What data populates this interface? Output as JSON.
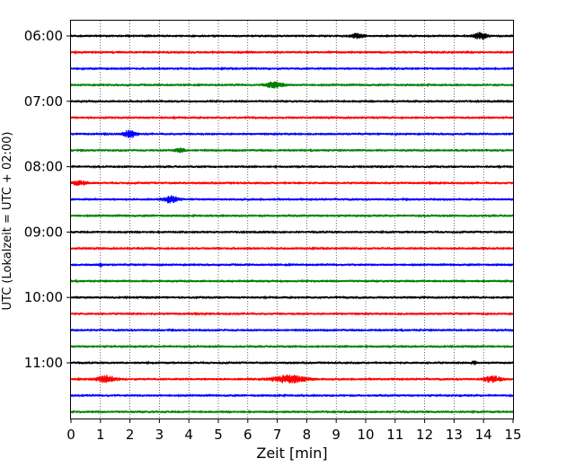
{
  "chart_data": {
    "type": "line",
    "title": "",
    "xlabel": "Zeit  [min]",
    "ylabel": "UTC (Lokalzeit = UTC + 02:00)",
    "xlim": [
      0,
      15
    ],
    "x_ticks": [
      "0",
      "1",
      "2",
      "3",
      "4",
      "5",
      "6",
      "7",
      "8",
      "9",
      "10",
      "11",
      "12",
      "13",
      "14",
      "15"
    ],
    "y_tick_labels": [
      "06:00",
      "07:00",
      "08:00",
      "09:00",
      "10:00",
      "11:00"
    ],
    "grid": "vertical dotted at each minute",
    "row_interval_minutes": 15,
    "row_colors": [
      "#000000",
      "#ff0000",
      "#0000ff",
      "#008000"
    ],
    "rows": [
      {
        "start": "06:00",
        "color": "#000000",
        "events": [
          {
            "x": 9.7,
            "amp": 2.2,
            "width": 0.7
          },
          {
            "x": 13.9,
            "amp": 3.2,
            "width": 0.7
          }
        ]
      },
      {
        "start": "06:15",
        "color": "#ff0000",
        "events": []
      },
      {
        "start": "06:30",
        "color": "#0000ff",
        "events": []
      },
      {
        "start": "06:45",
        "color": "#008000",
        "events": [
          {
            "x": 6.9,
            "amp": 3.0,
            "width": 0.9
          }
        ]
      },
      {
        "start": "07:00",
        "color": "#000000",
        "events": []
      },
      {
        "start": "07:15",
        "color": "#ff0000",
        "events": []
      },
      {
        "start": "07:30",
        "color": "#0000ff",
        "events": [
          {
            "x": 2.0,
            "amp": 3.6,
            "width": 0.7
          }
        ]
      },
      {
        "start": "07:45",
        "color": "#008000",
        "events": [
          {
            "x": 3.7,
            "amp": 2.0,
            "width": 0.5
          }
        ]
      },
      {
        "start": "08:00",
        "color": "#000000",
        "events": []
      },
      {
        "start": "08:15",
        "color": "#ff0000",
        "events": [
          {
            "x": 0.3,
            "amp": 2.0,
            "width": 0.8
          }
        ]
      },
      {
        "start": "08:30",
        "color": "#0000ff",
        "events": [
          {
            "x": 3.4,
            "amp": 3.6,
            "width": 0.7
          }
        ]
      },
      {
        "start": "08:45",
        "color": "#008000",
        "events": []
      },
      {
        "start": "09:00",
        "color": "#000000",
        "events": []
      },
      {
        "start": "09:15",
        "color": "#ff0000",
        "events": []
      },
      {
        "start": "09:30",
        "color": "#0000ff",
        "events": [
          {
            "x": 1.0,
            "amp": 2.0,
            "width": 0.15
          }
        ]
      },
      {
        "start": "09:45",
        "color": "#008000",
        "events": []
      },
      {
        "start": "10:00",
        "color": "#000000",
        "events": []
      },
      {
        "start": "10:15",
        "color": "#ff0000",
        "events": []
      },
      {
        "start": "10:30",
        "color": "#0000ff",
        "events": []
      },
      {
        "start": "10:45",
        "color": "#008000",
        "events": []
      },
      {
        "start": "11:00",
        "color": "#000000",
        "events": [
          {
            "x": 13.7,
            "amp": 1.8,
            "width": 0.3
          }
        ]
      },
      {
        "start": "11:15",
        "color": "#ff0000",
        "events": [
          {
            "x": 1.2,
            "amp": 3.4,
            "width": 1.0
          },
          {
            "x": 7.4,
            "amp": 4.0,
            "width": 1.6
          },
          {
            "x": 14.3,
            "amp": 3.4,
            "width": 0.8
          }
        ]
      },
      {
        "start": "11:30",
        "color": "#0000ff",
        "events": []
      },
      {
        "start": "11:45",
        "color": "#008000",
        "events": []
      }
    ]
  }
}
